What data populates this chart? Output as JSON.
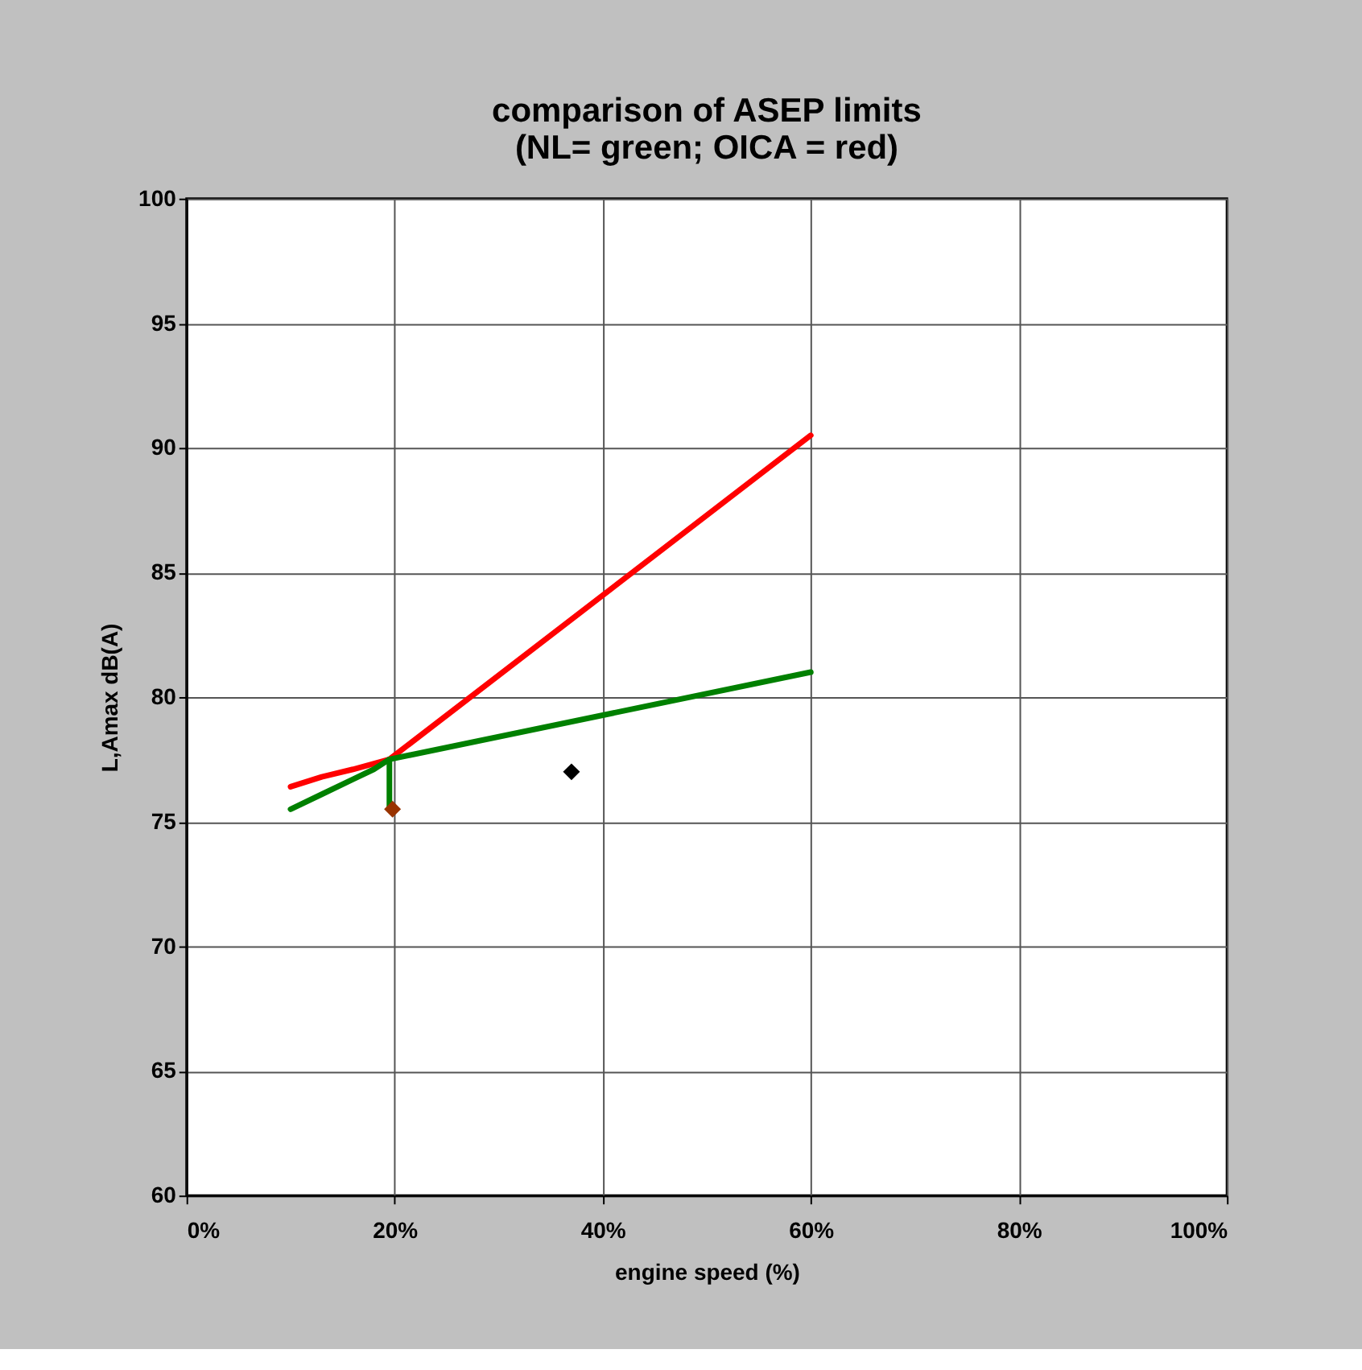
{
  "chart_data": {
    "type": "line",
    "title": "comparison of ASEP limits\n(NL= green; OICA = red)",
    "xlabel": "engine speed (%)",
    "ylabel": "L,Amax dB(A)",
    "xlim": [
      0,
      100
    ],
    "ylim": [
      60,
      100
    ],
    "xticks": [
      {
        "value": 0,
        "label": "0%"
      },
      {
        "value": 20,
        "label": "20%"
      },
      {
        "value": 40,
        "label": "40%"
      },
      {
        "value": 60,
        "label": "60%"
      },
      {
        "value": 80,
        "label": "80%"
      },
      {
        "value": 100,
        "label": "100%"
      }
    ],
    "yticks": [
      60,
      65,
      70,
      75,
      80,
      85,
      90,
      95,
      100
    ],
    "grid": true,
    "line_style": "solid",
    "series": [
      {
        "color": "#ff0000",
        "x": [
          10,
          13,
          16,
          19.5,
          60
        ],
        "values": [
          76.4,
          76.8,
          77.1,
          77.5,
          90.5
        ]
      },
      {
        "color": "#008000",
        "x": [
          10,
          13,
          16,
          18,
          19.5,
          60
        ],
        "values": [
          75.5,
          76.1,
          76.7,
          77.1,
          77.5,
          81.0
        ]
      },
      {
        "color": "#008000",
        "x": [
          19.5,
          19.5
        ],
        "values": [
          77.5,
          75.5
        ]
      },
      {
        "type": "scatter",
        "marker": "diamond",
        "color": "#993300",
        "x": [
          19.8
        ],
        "values": [
          75.5
        ]
      },
      {
        "type": "scatter",
        "marker": "diamond",
        "color": "#000000",
        "x": [
          37
        ],
        "values": [
          77
        ]
      }
    ]
  }
}
